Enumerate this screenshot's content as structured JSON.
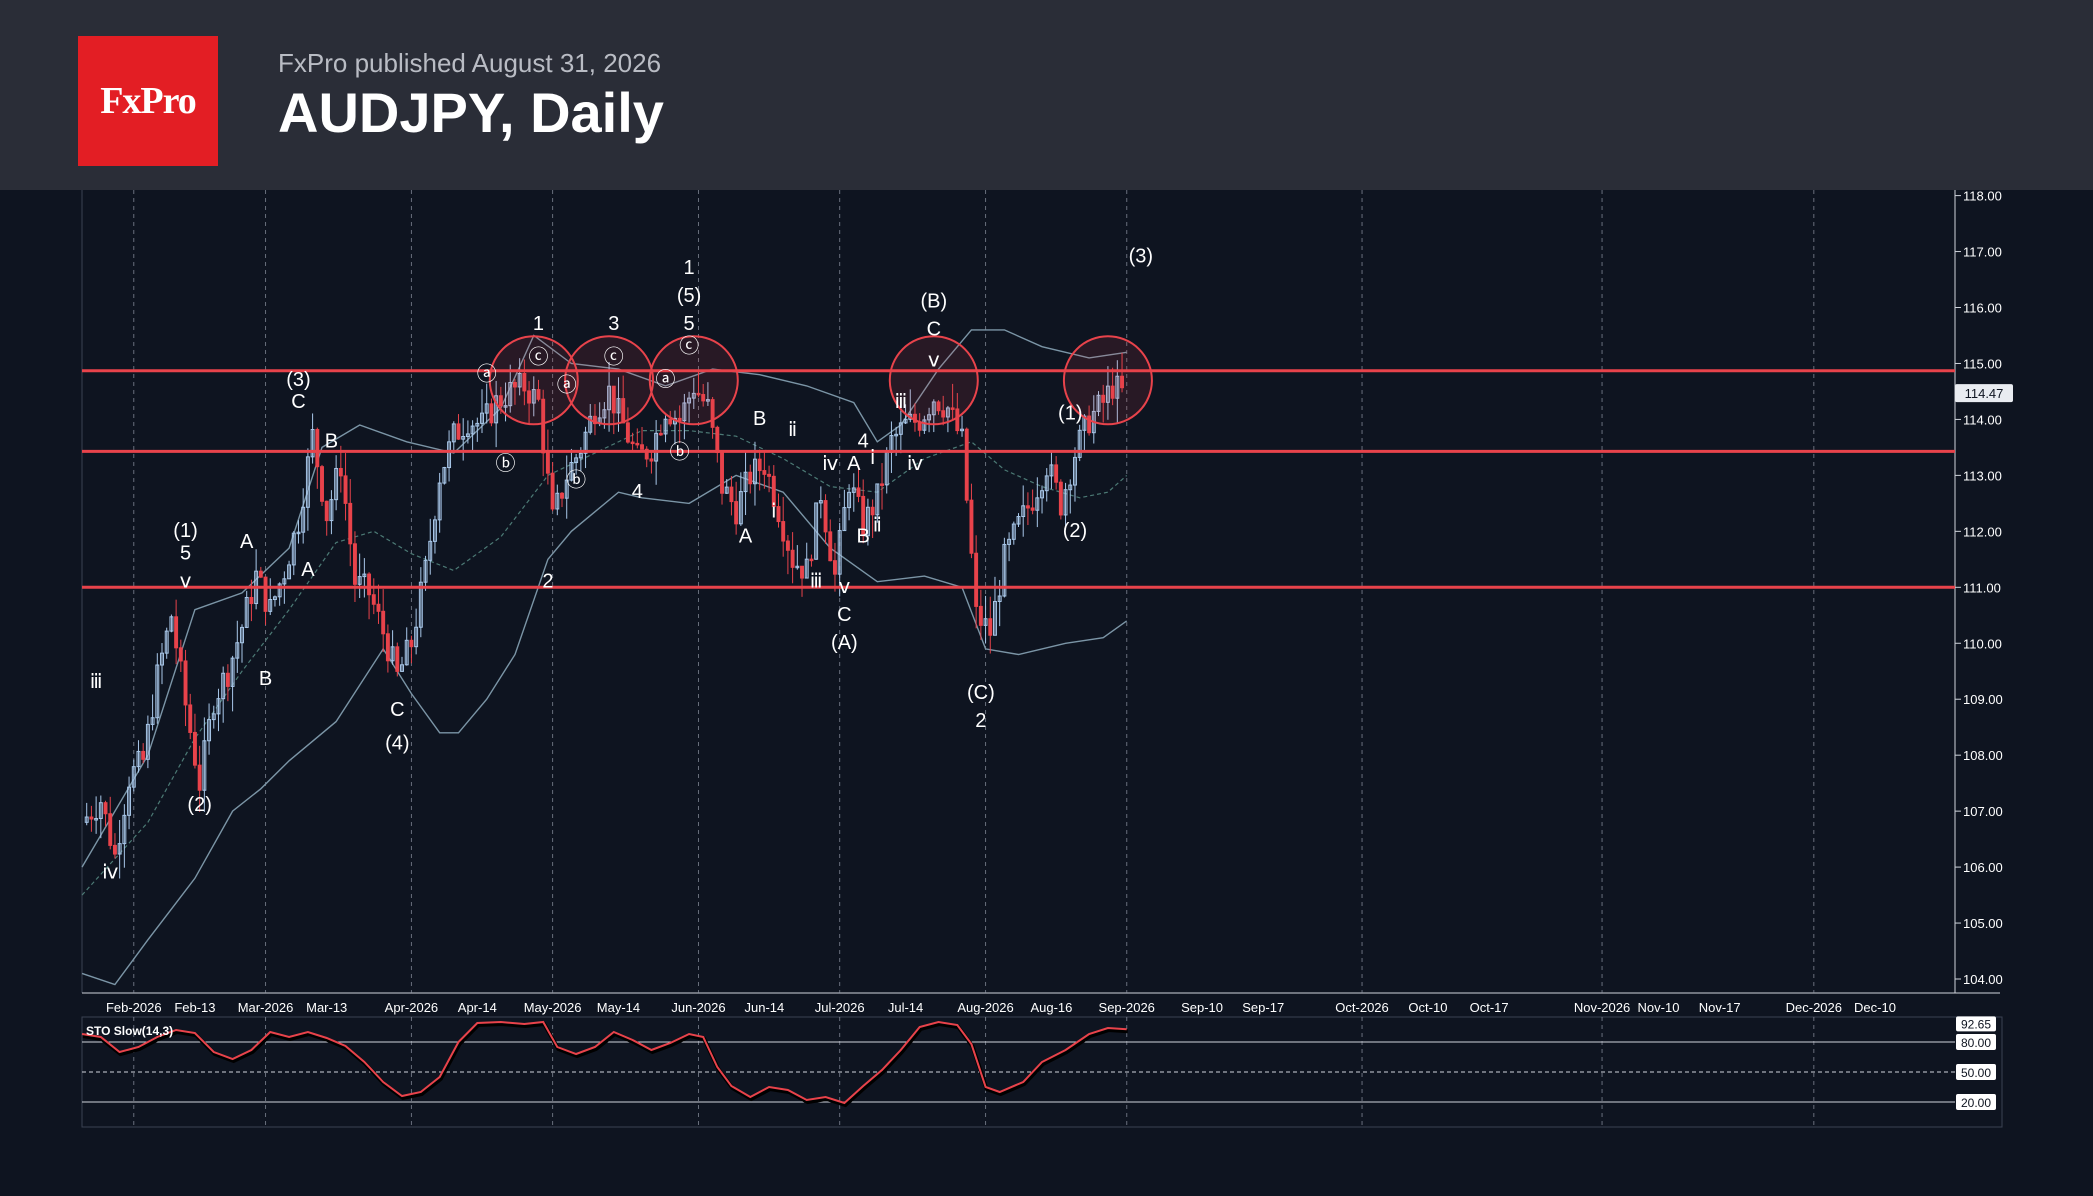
{
  "header": {
    "logo_text": "FxPro",
    "publisher": "FxPro published August 31, 2026",
    "title": "AUDJPY, Daily"
  },
  "colors": {
    "background": "#0e1420",
    "header_background": "#2a2d37",
    "logo_red": "#e31e24",
    "up_candle": "#a9c8ea",
    "down_candle": "#e8434b",
    "level_line": "#e8434b",
    "bollinger": "#7b95a6",
    "stochastic": "#e8434b"
  },
  "chart_data": [
    {
      "type": "candlestick",
      "symbol": "AUDJPY",
      "timeframe": "Daily",
      "ylim": [
        103.75,
        118.1
      ],
      "y_ticks": [
        "104.00",
        "105.00",
        "106.00",
        "107.00",
        "108.00",
        "109.00",
        "110.00",
        "111.00",
        "112.00",
        "113.00",
        "114.00",
        "115.00",
        "116.00",
        "117.00",
        "118.00"
      ],
      "x_ticks": [
        "Feb-2026",
        "Feb-13",
        "Mar-2026",
        "Mar-13",
        "Apr-2026",
        "Apr-14",
        "May-2026",
        "May-14",
        "Jun-2026",
        "Jun-14",
        "Jul-2026",
        "Jul-14",
        "Aug-2026",
        "Aug-16",
        "Sep-2026",
        "Sep-10",
        "Sep-17",
        "Oct-2026",
        "Oct-10",
        "Oct-17",
        "Nov-2026",
        "Nov-10",
        "Nov-17",
        "Dec-2026",
        "Dec-10"
      ],
      "x_tick_days": [
        7,
        20,
        35,
        48,
        66,
        80,
        96,
        110,
        127,
        141,
        157,
        171,
        188,
        202,
        218,
        234,
        247,
        268,
        282,
        295,
        319,
        331,
        344,
        364,
        377
      ],
      "major_ticks": [
        "Feb-2026",
        "Mar-2026",
        "Apr-2026",
        "May-2026",
        "Jun-2026",
        "Jul-2026",
        "Aug-2026",
        "Sep-2026",
        "Oct-2026",
        "Nov-2026",
        "Dec-2026"
      ],
      "x_range_days": [
        -4,
        394
      ],
      "last_price": "114.47",
      "horizontal_levels": [
        114.87,
        113.43,
        111.0
      ],
      "circles": [
        {
          "day": 92,
          "price": 114.7
        },
        {
          "day": 108,
          "price": 114.7
        },
        {
          "day": 126,
          "price": 114.7
        },
        {
          "day": 177,
          "price": 114.7
        },
        {
          "day": 214,
          "price": 114.7
        }
      ],
      "close_path": [
        [
          -4,
          106.8
        ],
        [
          0,
          107.2
        ],
        [
          3,
          106.2
        ],
        [
          6,
          107.6
        ],
        [
          9,
          107.9
        ],
        [
          12,
          109.4
        ],
        [
          15,
          110.5
        ],
        [
          18,
          108.9
        ],
        [
          21,
          107.5
        ],
        [
          24,
          109.0
        ],
        [
          27,
          109.5
        ],
        [
          30,
          110.3
        ],
        [
          33,
          111.2
        ],
        [
          36,
          110.6
        ],
        [
          39,
          111.3
        ],
        [
          42,
          112.2
        ],
        [
          45,
          113.7
        ],
        [
          48,
          112.3
        ],
        [
          51,
          113.2
        ],
        [
          54,
          111.1
        ],
        [
          57,
          110.9
        ],
        [
          60,
          110.2
        ],
        [
          63,
          109.4
        ],
        [
          66,
          110.0
        ],
        [
          69,
          111.3
        ],
        [
          72,
          113.0
        ],
        [
          75,
          113.7
        ],
        [
          78,
          114.0
        ],
        [
          81,
          113.9
        ],
        [
          84,
          114.3
        ],
        [
          87,
          114.5
        ],
        [
          90,
          114.6
        ],
        [
          93,
          114.3
        ],
        [
          96,
          112.2
        ],
        [
          99,
          113.0
        ],
        [
          102,
          113.5
        ],
        [
          105,
          114.2
        ],
        [
          108,
          114.5
        ],
        [
          111,
          113.9
        ],
        [
          114,
          113.3
        ],
        [
          117,
          113.5
        ],
        [
          120,
          114.2
        ],
        [
          123,
          114.0
        ],
        [
          126,
          114.6
        ],
        [
          129,
          114.2
        ],
        [
          132,
          112.8
        ],
        [
          135,
          112.4
        ],
        [
          138,
          113.0
        ],
        [
          141,
          113.2
        ],
        [
          144,
          112.4
        ],
        [
          147,
          111.5
        ],
        [
          150,
          111.3
        ],
        [
          153,
          112.7
        ],
        [
          156,
          111.2
        ],
        [
          159,
          112.9
        ],
        [
          162,
          112.1
        ],
        [
          165,
          112.6
        ],
        [
          168,
          113.6
        ],
        [
          171,
          113.9
        ],
        [
          174,
          114.0
        ],
        [
          177,
          114.4
        ],
        [
          180,
          114.2
        ],
        [
          183,
          113.6
        ],
        [
          186,
          110.5
        ],
        [
          189,
          110.2
        ],
        [
          192,
          111.5
        ],
        [
          195,
          112.1
        ],
        [
          198,
          112.6
        ],
        [
          201,
          113.2
        ],
        [
          204,
          112.5
        ],
        [
          207,
          113.4
        ],
        [
          210,
          114.0
        ],
        [
          213,
          114.3
        ],
        [
          215,
          114.6
        ],
        [
          217,
          114.47
        ]
      ],
      "bollinger_upper": [
        [
          -4,
          106.0
        ],
        [
          10,
          108.0
        ],
        [
          20,
          110.6
        ],
        [
          30,
          110.9
        ],
        [
          40,
          111.7
        ],
        [
          47,
          113.5
        ],
        [
          55,
          113.9
        ],
        [
          65,
          113.6
        ],
        [
          75,
          113.4
        ],
        [
          85,
          114.2
        ],
        [
          92,
          115.5
        ],
        [
          100,
          115.0
        ],
        [
          110,
          114.9
        ],
        [
          120,
          114.6
        ],
        [
          130,
          114.9
        ],
        [
          140,
          114.8
        ],
        [
          150,
          114.6
        ],
        [
          160,
          114.3
        ],
        [
          165,
          113.6
        ],
        [
          170,
          113.9
        ],
        [
          178,
          114.9
        ],
        [
          185,
          115.6
        ],
        [
          192,
          115.6
        ],
        [
          200,
          115.3
        ],
        [
          210,
          115.1
        ],
        [
          218,
          115.2
        ]
      ],
      "bollinger_mid": [
        [
          -4,
          105.5
        ],
        [
          10,
          106.8
        ],
        [
          20,
          108.3
        ],
        [
          30,
          109.5
        ],
        [
          40,
          110.6
        ],
        [
          50,
          111.8
        ],
        [
          58,
          112.0
        ],
        [
          66,
          111.6
        ],
        [
          75,
          111.3
        ],
        [
          85,
          111.9
        ],
        [
          95,
          113.0
        ],
        [
          105,
          113.4
        ],
        [
          115,
          113.8
        ],
        [
          125,
          113.8
        ],
        [
          135,
          113.7
        ],
        [
          145,
          113.3
        ],
        [
          155,
          112.8
        ],
        [
          165,
          112.7
        ],
        [
          175,
          113.3
        ],
        [
          185,
          113.6
        ],
        [
          192,
          113.1
        ],
        [
          200,
          112.8
        ],
        [
          208,
          112.6
        ],
        [
          214,
          112.7
        ],
        [
          218,
          113.0
        ]
      ],
      "bollinger_lower": [
        [
          -4,
          104.1
        ],
        [
          3,
          103.9
        ],
        [
          10,
          104.7
        ],
        [
          20,
          105.8
        ],
        [
          28,
          107.0
        ],
        [
          34,
          107.4
        ],
        [
          40,
          107.9
        ],
        [
          50,
          108.6
        ],
        [
          60,
          109.9
        ],
        [
          66,
          109.1
        ],
        [
          72,
          108.4
        ],
        [
          76,
          108.4
        ],
        [
          82,
          109.0
        ],
        [
          88,
          109.8
        ],
        [
          95,
          111.5
        ],
        [
          100,
          112.0
        ],
        [
          110,
          112.7
        ],
        [
          115,
          112.6
        ],
        [
          125,
          112.5
        ],
        [
          135,
          113.0
        ],
        [
          145,
          112.7
        ],
        [
          155,
          111.7
        ],
        [
          165,
          111.1
        ],
        [
          175,
          111.2
        ],
        [
          183,
          111.0
        ],
        [
          188,
          109.9
        ],
        [
          195,
          109.8
        ],
        [
          205,
          110.0
        ],
        [
          213,
          110.1
        ],
        [
          218,
          110.4
        ]
      ],
      "annotations": [
        {
          "text": "ⅲ",
          "day": -1,
          "price": 109.2
        },
        {
          "text": "ⅳ",
          "day": 2,
          "price": 105.8
        },
        {
          "text": "(1)",
          "day": 18,
          "price": 111.9
        },
        {
          "text": "5",
          "day": 18,
          "price": 111.5
        },
        {
          "text": "ⅴ",
          "day": 18,
          "price": 111.0
        },
        {
          "text": "(2)",
          "day": 21,
          "price": 107.0
        },
        {
          "text": "A",
          "day": 31,
          "price": 111.7
        },
        {
          "text": "B",
          "day": 35,
          "price": 109.25
        },
        {
          "text": "A",
          "day": 44,
          "price": 111.2
        },
        {
          "text": "(3)",
          "day": 42,
          "price": 114.6
        },
        {
          "text": "C",
          "day": 42,
          "price": 114.2
        },
        {
          "text": "B",
          "day": 49,
          "price": 113.5
        },
        {
          "text": "C",
          "day": 63,
          "price": 108.7
        },
        {
          "text": "(4)",
          "day": 63,
          "price": 108.1
        },
        {
          "text": "ⓑ",
          "day": 86,
          "price": 113.1
        },
        {
          "text": "ⓐ",
          "day": 82,
          "price": 114.7
        },
        {
          "text": "1",
          "day": 93,
          "price": 115.6
        },
        {
          "text": "ⓒ",
          "day": 93,
          "price": 115.0
        },
        {
          "text": "2",
          "day": 95,
          "price": 111.0
        },
        {
          "text": "ⓐ",
          "day": 99,
          "price": 114.5
        },
        {
          "text": "ⓑ",
          "day": 101,
          "price": 112.8
        },
        {
          "text": "3",
          "day": 109,
          "price": 115.6
        },
        {
          "text": "ⓒ",
          "day": 109,
          "price": 115.0
        },
        {
          "text": "4",
          "day": 114,
          "price": 112.6
        },
        {
          "text": "ⓐ",
          "day": 120,
          "price": 114.6
        },
        {
          "text": "ⓑ",
          "day": 123,
          "price": 113.3
        },
        {
          "text": "1",
          "day": 125,
          "price": 116.6
        },
        {
          "text": "(5)",
          "day": 125,
          "price": 116.1
        },
        {
          "text": "5",
          "day": 125,
          "price": 115.6
        },
        {
          "text": "ⓒ",
          "day": 125,
          "price": 115.2
        },
        {
          "text": "B",
          "day": 140,
          "price": 113.9
        },
        {
          "text": "ⅱ",
          "day": 147,
          "price": 113.7
        },
        {
          "text": "A",
          "day": 137,
          "price": 111.8
        },
        {
          "text": "ⅰ",
          "day": 143,
          "price": 112.25
        },
        {
          "text": "ⅲ",
          "day": 152,
          "price": 111.0
        },
        {
          "text": "ⅳ",
          "day": 155,
          "price": 113.1
        },
        {
          "text": "A",
          "day": 160,
          "price": 113.1
        },
        {
          "text": "4",
          "day": 162,
          "price": 113.5
        },
        {
          "text": "ⅰ",
          "day": 164,
          "price": 113.2
        },
        {
          "text": "ⅴ",
          "day": 158,
          "price": 110.9
        },
        {
          "text": "C",
          "day": 158,
          "price": 110.4
        },
        {
          "text": "(A)",
          "day": 158,
          "price": 109.9
        },
        {
          "text": "B",
          "day": 162,
          "price": 111.8
        },
        {
          "text": "ⅱ",
          "day": 165,
          "price": 112.0
        },
        {
          "text": "ⅲ",
          "day": 170,
          "price": 114.2
        },
        {
          "text": "ⅳ",
          "day": 173,
          "price": 113.1
        },
        {
          "text": "(B)",
          "day": 177,
          "price": 116.0
        },
        {
          "text": "C",
          "day": 177,
          "price": 115.5
        },
        {
          "text": "ⅴ",
          "day": 177,
          "price": 114.95
        },
        {
          "text": "(C)",
          "day": 187,
          "price": 109.0
        },
        {
          "text": "2",
          "day": 187,
          "price": 108.5
        },
        {
          "text": "(1)",
          "day": 206,
          "price": 114.0
        },
        {
          "text": "(2)",
          "day": 207,
          "price": 111.9
        },
        {
          "text": "(3)",
          "day": 221,
          "price": 116.8
        }
      ]
    },
    {
      "type": "line",
      "title": "STO Slow(14,3)",
      "ylim": [
        0,
        100
      ],
      "levels": [
        80,
        50,
        20
      ],
      "level_labels": [
        "80.00",
        "50.00",
        "20.00"
      ],
      "last_value_label": "92.65",
      "values": [
        [
          -4,
          88
        ],
        [
          0,
          85
        ],
        [
          4,
          70
        ],
        [
          8,
          75
        ],
        [
          12,
          85
        ],
        [
          16,
          92
        ],
        [
          20,
          89
        ],
        [
          24,
          70
        ],
        [
          28,
          63
        ],
        [
          32,
          72
        ],
        [
          36,
          90
        ],
        [
          40,
          85
        ],
        [
          44,
          90
        ],
        [
          48,
          84
        ],
        [
          52,
          76
        ],
        [
          56,
          60
        ],
        [
          60,
          40
        ],
        [
          64,
          26
        ],
        [
          68,
          30
        ],
        [
          72,
          45
        ],
        [
          76,
          80
        ],
        [
          80,
          99
        ],
        [
          85,
          100
        ],
        [
          90,
          98
        ],
        [
          94,
          100
        ],
        [
          97,
          75
        ],
        [
          101,
          68
        ],
        [
          105,
          75
        ],
        [
          109,
          90
        ],
        [
          113,
          82
        ],
        [
          117,
          72
        ],
        [
          121,
          79
        ],
        [
          125,
          88
        ],
        [
          128,
          85
        ],
        [
          131,
          55
        ],
        [
          134,
          36
        ],
        [
          138,
          25
        ],
        [
          142,
          35
        ],
        [
          146,
          32
        ],
        [
          150,
          22
        ],
        [
          154,
          25
        ],
        [
          158,
          19
        ],
        [
          162,
          36
        ],
        [
          166,
          52
        ],
        [
          170,
          72
        ],
        [
          174,
          95
        ],
        [
          178,
          100
        ],
        [
          182,
          97
        ],
        [
          185,
          78
        ],
        [
          188,
          35
        ],
        [
          191,
          30
        ],
        [
          196,
          40
        ],
        [
          200,
          60
        ],
        [
          205,
          72
        ],
        [
          210,
          88
        ],
        [
          214,
          94
        ],
        [
          218,
          92.65
        ]
      ]
    }
  ]
}
